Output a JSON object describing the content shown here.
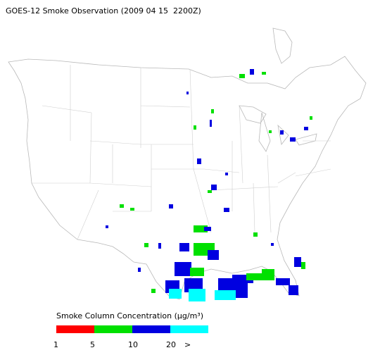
{
  "map": {
    "title": "GOES-12 Smoke Observation (2009 04 15  2200Z)",
    "legend": {
      "title": "Smoke Column Concentration (μg/m³)",
      "colors": [
        "#ff0000",
        "#00e000",
        "#0000e0",
        "#00ffff"
      ],
      "ticks": [
        1,
        5,
        10,
        20
      ],
      "overflow_label": ">"
    }
  }
}
